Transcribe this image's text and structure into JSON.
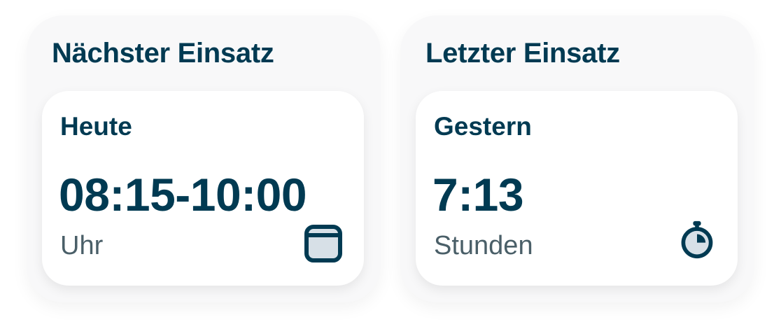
{
  "colors": {
    "primary": "#003a52",
    "muted": "#4a5f68",
    "icon_fill": "#d7e0e7"
  },
  "cards": [
    {
      "title": "Nächster Einsatz",
      "day": "Heute",
      "value": "08:15-10:00",
      "unit": "Uhr",
      "icon": "calendar-icon"
    },
    {
      "title": "Letzter Einsatz",
      "day": "Gestern",
      "value": "7:13",
      "unit": "Stunden",
      "icon": "stopwatch-icon"
    }
  ]
}
